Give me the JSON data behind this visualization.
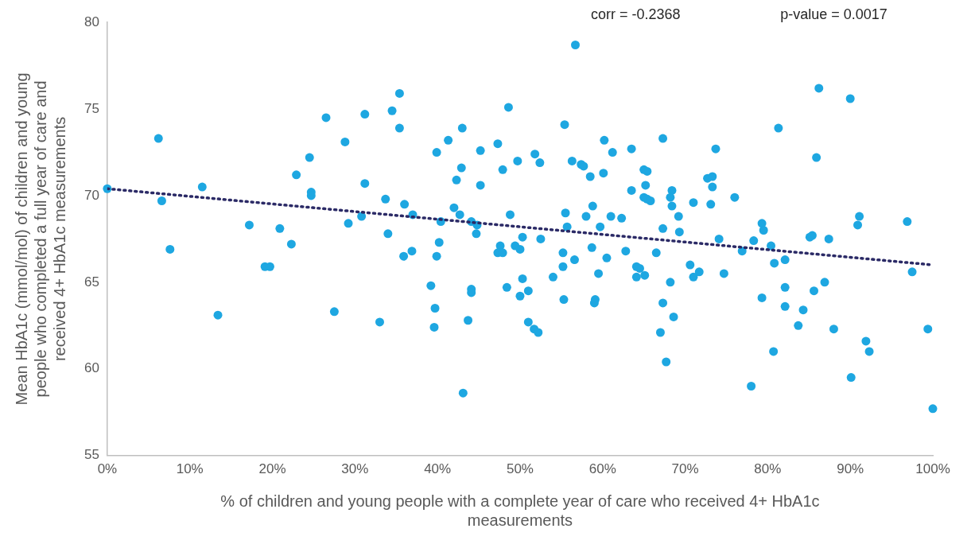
{
  "chart_data": {
    "type": "scatter",
    "xlabel": "% of children and young people with a complete year of care who received 4+ HbA1c measurements",
    "ylabel": "Mean HbA1c (mmol/mol) of children and young people who completed a full year of care and received 4+ HbA1c measurements",
    "annotations": [
      "corr = -0.2368",
      "p-value = 0.0017"
    ],
    "xlim": [
      0,
      100
    ],
    "xticks": [
      {
        "value": 0,
        "label": "0%"
      },
      {
        "value": 10,
        "label": "10%"
      },
      {
        "value": 20,
        "label": "20%"
      },
      {
        "value": 30,
        "label": "30%"
      },
      {
        "value": 40,
        "label": "40%"
      },
      {
        "value": 50,
        "label": "50%"
      },
      {
        "value": 60,
        "label": "60%"
      },
      {
        "value": 70,
        "label": "70%"
      },
      {
        "value": 80,
        "label": "80%"
      },
      {
        "value": 90,
        "label": "90%"
      },
      {
        "value": 100,
        "label": "100%"
      }
    ],
    "ylim": [
      55,
      80
    ],
    "yticks": [
      55,
      60,
      65,
      70,
      75,
      80
    ],
    "grid": false,
    "legend": false,
    "marker": "circle",
    "series": [
      {
        "type": "scatter",
        "color": "#1ea7e1",
        "x": [
          0,
          6.2,
          6.6,
          7.6,
          11.5,
          13.4,
          17.2,
          19.1,
          19.7,
          20.9,
          22.3,
          22.9,
          24.5,
          24.7,
          24.7,
          26.5,
          27.5,
          28.8,
          29.2,
          30.8,
          31.2,
          31.2,
          33.0,
          33.7,
          34.0,
          34.5,
          35.4,
          35.4,
          35.9,
          36.0,
          36.9,
          37.0,
          39.9,
          41.3,
          43.0,
          42.9,
          42.3,
          45.2,
          45.2,
          47.3,
          47.9,
          48.6,
          49.7,
          51.8,
          52.4,
          55.4,
          56.7,
          56.3,
          57.4,
          57.7,
          58.5,
          60.1,
          60.2,
          61.2,
          63.5,
          63.5,
          65.0,
          65.4,
          65.2,
          65.0,
          65.4,
          65.8,
          67.3,
          42.0,
          42.7,
          40.4,
          40.2,
          39.9,
          39.2,
          39.7,
          39.6,
          43.1,
          43.7,
          44.1,
          44.8,
          44.7,
          44.1,
          44.1,
          47.6,
          47.3,
          47.9,
          48.8,
          48.4,
          49.4,
          50.0,
          50.3,
          50.3,
          50.0,
          51.0,
          51.0,
          51.7,
          52.2,
          52.5,
          54.0,
          55.2,
          55.2,
          55.3,
          55.5,
          55.7,
          56.6,
          58.0,
          58.8,
          58.7,
          59.7,
          59.5,
          60.5,
          59.1,
          59.0,
          61.0,
          62.3,
          62.8,
          64.1,
          64.5,
          65.1,
          64.1,
          66.5,
          67.3,
          67.3,
          67.0,
          67.7,
          68.2,
          68.6,
          68.4,
          68.2,
          68.4,
          69.2,
          69.3,
          71.0,
          70.6,
          71.0,
          71.7,
          73.7,
          72.7,
          73.3,
          73.3,
          73.1,
          74.1,
          74.7,
          76.0,
          76.9,
          78.3,
          78.0,
          79.3,
          79.5,
          79.3,
          80.4,
          80.8,
          82.1,
          81.3,
          80.7,
          82.1,
          82.1,
          84.3,
          83.7,
          85.6,
          86.9,
          85.1,
          85.4,
          87.4,
          85.9,
          86.2,
          88.0,
          90.0,
          91.1,
          90.9,
          90.1,
          91.9,
          92.3,
          96.9,
          97.5,
          99.4,
          100
        ],
        "values": [
          70.4,
          73.3,
          69.7,
          66.9,
          70.5,
          63.1,
          68.3,
          65.9,
          65.9,
          68.1,
          67.2,
          71.2,
          72.2,
          70.2,
          70.0,
          74.5,
          63.3,
          73.1,
          68.4,
          68.8,
          74.7,
          70.7,
          62.7,
          69.8,
          67.8,
          74.9,
          75.9,
          73.9,
          66.5,
          69.5,
          66.8,
          68.9,
          72.5,
          73.2,
          73.9,
          71.6,
          70.9,
          72.6,
          70.6,
          73.0,
          71.5,
          75.1,
          72.0,
          72.4,
          71.9,
          74.1,
          78.7,
          72.0,
          71.8,
          71.7,
          71.1,
          71.3,
          73.2,
          72.5,
          72.7,
          70.3,
          71.5,
          71.4,
          70.6,
          69.9,
          69.8,
          69.7,
          73.3,
          69.3,
          68.9,
          68.5,
          67.3,
          66.5,
          64.8,
          63.5,
          62.4,
          58.6,
          62.8,
          68.5,
          68.3,
          67.8,
          64.6,
          64.4,
          67.1,
          66.7,
          66.7,
          68.9,
          64.7,
          67.1,
          66.9,
          67.6,
          65.2,
          64.2,
          64.5,
          62.7,
          62.3,
          62.1,
          67.5,
          65.3,
          66.7,
          65.9,
          64.0,
          69.0,
          68.2,
          66.3,
          68.8,
          69.4,
          67.0,
          68.2,
          65.5,
          66.4,
          64.0,
          63.8,
          68.8,
          68.7,
          66.8,
          65.9,
          65.8,
          65.4,
          65.3,
          66.7,
          68.1,
          63.8,
          62.1,
          60.4,
          65.0,
          63.0,
          70.3,
          69.9,
          69.4,
          68.8,
          67.9,
          69.6,
          66.0,
          65.3,
          65.6,
          72.7,
          71.0,
          71.1,
          70.5,
          69.5,
          67.5,
          65.5,
          69.9,
          66.8,
          67.4,
          59.0,
          68.4,
          68.0,
          64.1,
          67.1,
          66.1,
          66.3,
          73.9,
          61.0,
          64.7,
          63.6,
          63.4,
          62.5,
          64.5,
          65.0,
          67.6,
          67.7,
          67.5,
          72.2,
          76.2,
          62.3,
          75.6,
          68.8,
          68.3,
          59.5,
          61.6,
          61.0,
          68.5,
          65.6,
          62.3,
          57.7
        ]
      },
      {
        "type": "line",
        "color": "#2b2a66",
        "x": [
          0,
          100
        ],
        "values": [
          70.4,
          66.0
        ],
        "line_style": "dotted",
        "marker": "none"
      }
    ]
  }
}
